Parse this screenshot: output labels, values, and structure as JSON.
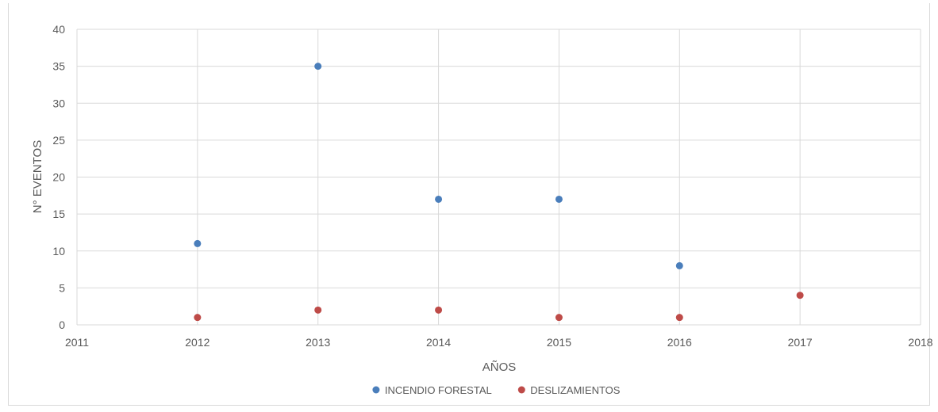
{
  "chart_data": {
    "type": "scatter",
    "title": "",
    "xlabel": "AÑOS",
    "ylabel": "N° EVENTOS",
    "xlim": [
      2011,
      2018
    ],
    "ylim": [
      0,
      40
    ],
    "x_ticks": [
      2011,
      2012,
      2013,
      2014,
      2015,
      2016,
      2017,
      2018
    ],
    "y_ticks": [
      0,
      5,
      10,
      15,
      20,
      25,
      30,
      35,
      40
    ],
    "grid": true,
    "legend_position": "bottom",
    "series": [
      {
        "name": "INCENDIO FORESTAL",
        "color": "#4a7ebb",
        "points": [
          {
            "x": 2012,
            "y": 11
          },
          {
            "x": 2013,
            "y": 35
          },
          {
            "x": 2014,
            "y": 17
          },
          {
            "x": 2015,
            "y": 17
          },
          {
            "x": 2016,
            "y": 8
          }
        ]
      },
      {
        "name": "DESLIZAMIENTOS",
        "color": "#be4b48",
        "points": [
          {
            "x": 2012,
            "y": 1
          },
          {
            "x": 2013,
            "y": 2
          },
          {
            "x": 2014,
            "y": 2
          },
          {
            "x": 2015,
            "y": 1
          },
          {
            "x": 2016,
            "y": 1
          },
          {
            "x": 2017,
            "y": 4
          }
        ]
      }
    ]
  },
  "colors": {
    "grid": "#d9d9d9",
    "axis_text": "#595959",
    "axis_title": "#595959"
  }
}
